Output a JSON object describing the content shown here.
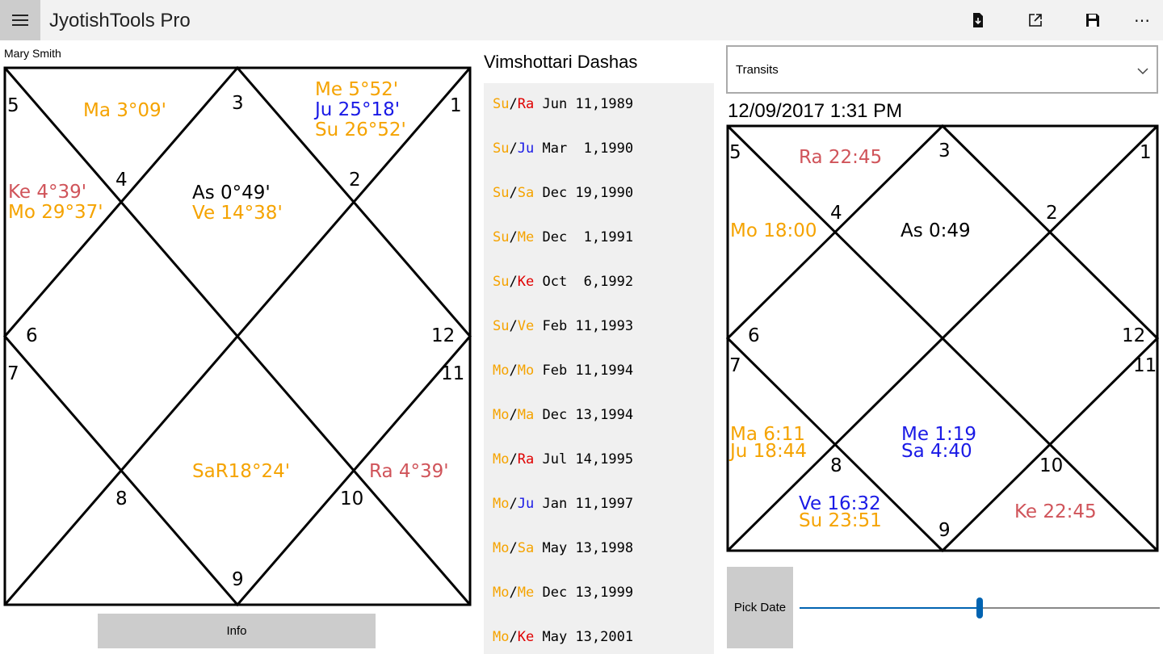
{
  "app": {
    "title": "JyotishTools Pro"
  },
  "toolbar": {
    "icons": [
      "import-file-icon",
      "open-external-icon",
      "save-icon",
      "more-icon"
    ],
    "more_label": "⋯"
  },
  "natal": {
    "person_name": "Mary Smith",
    "house_numbers": [
      "1",
      "2",
      "3",
      "4",
      "5",
      "6",
      "7",
      "8",
      "9",
      "10",
      "11",
      "12"
    ],
    "planets": [
      {
        "text": "Ma  3°09'",
        "color": "#f5a300"
      },
      {
        "text": "Me  5°52'",
        "color": "#f5a300"
      },
      {
        "text": "Ju 25°18'",
        "color": "#1a1ae6"
      },
      {
        "text": "Su 26°52'",
        "color": "#f5a300"
      },
      {
        "text": "As  0°49'",
        "color": "#000000"
      },
      {
        "text": "Ve 14°38'",
        "color": "#f5a300"
      },
      {
        "text": "Ke  4°39'",
        "color": "#d0545a"
      },
      {
        "text": "Mo 29°37'",
        "color": "#f5a300"
      },
      {
        "text": "SaR18°24'",
        "color": "#f5a300"
      },
      {
        "text": "Ra  4°39'",
        "color": "#d0545a"
      }
    ],
    "info_button": "Info"
  },
  "dashas": {
    "title": "Vimshottari Dashas",
    "rows": [
      {
        "maha": "Su",
        "antar": "Ra",
        "date": "Jun 11,1989"
      },
      {
        "maha": "Su",
        "antar": "Ju",
        "date": "Mar  1,1990"
      },
      {
        "maha": "Su",
        "antar": "Sa",
        "date": "Dec 19,1990"
      },
      {
        "maha": "Su",
        "antar": "Me",
        "date": "Dec  1,1991"
      },
      {
        "maha": "Su",
        "antar": "Ke",
        "date": "Oct  6,1992"
      },
      {
        "maha": "Su",
        "antar": "Ve",
        "date": "Feb 11,1993"
      },
      {
        "maha": "Mo",
        "antar": "Mo",
        "date": "Feb 11,1994"
      },
      {
        "maha": "Mo",
        "antar": "Ma",
        "date": "Dec 13,1994"
      },
      {
        "maha": "Mo",
        "antar": "Ra",
        "date": "Jul 14,1995"
      },
      {
        "maha": "Mo",
        "antar": "Ju",
        "date": "Jan 11,1997"
      },
      {
        "maha": "Mo",
        "antar": "Sa",
        "date": "May 13,1998"
      },
      {
        "maha": "Mo",
        "antar": "Me",
        "date": "Dec 13,1999"
      },
      {
        "maha": "Mo",
        "antar": "Ke",
        "date": "May 13,2001"
      }
    ],
    "planet_colors": {
      "Su": "#f5a300",
      "Mo": "#f5a300",
      "Ma": "#f5a300",
      "Me": "#f5a300",
      "Ve": "#f5a300",
      "Ra": "#e00000",
      "Ke": "#e00000",
      "Ju": "#1a1ae6",
      "Sa": "#f5a300"
    }
  },
  "transits": {
    "dropdown_value": "Transits",
    "date_time": "12/09/2017 1:31 PM",
    "house_numbers": [
      "1",
      "2",
      "3",
      "4",
      "5",
      "6",
      "7",
      "8",
      "9",
      "10",
      "11",
      "12"
    ],
    "planets": [
      {
        "text": "Ra 22:45",
        "color": "#d0545a"
      },
      {
        "text": "Mo 18:00",
        "color": "#f5a300"
      },
      {
        "text": "As  0:49",
        "color": "#000000"
      },
      {
        "text": "Ma  6:11",
        "color": "#f5a300"
      },
      {
        "text": "Ju 18:44",
        "color": "#f5a300"
      },
      {
        "text": "Me  1:19",
        "color": "#1a1ae6"
      },
      {
        "text": "Sa  4:40",
        "color": "#1a1ae6"
      },
      {
        "text": "Ve 16:32",
        "color": "#1a1ae6"
      },
      {
        "text": "Su 23:51",
        "color": "#f5a300"
      },
      {
        "text": "Ke 22:45",
        "color": "#d0545a"
      }
    ],
    "pick_date_label": "Pick Date",
    "slider_value_fraction": 0.5
  },
  "colors": {
    "accent": "#0063b1"
  }
}
